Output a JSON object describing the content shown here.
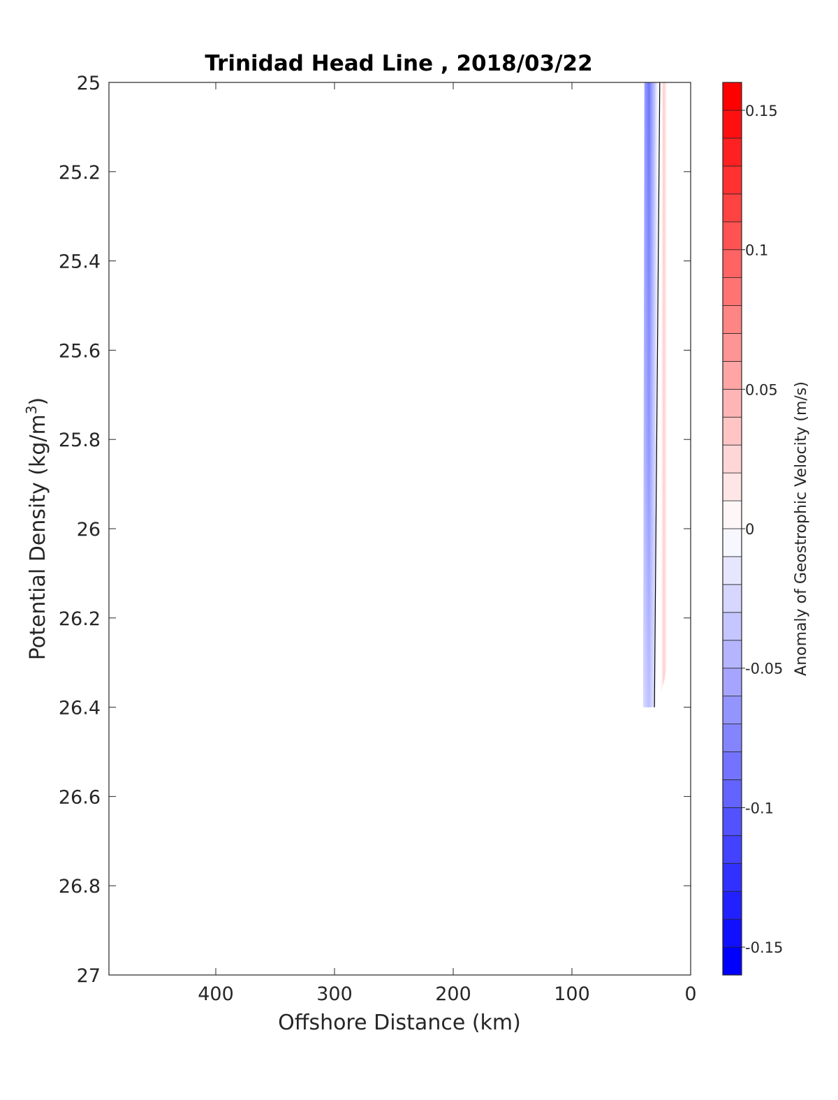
{
  "chart_data": {
    "type": "contour",
    "title": "Trinidad Head Line , 2018/03/22",
    "xlabel": "Offshore Distance (km)",
    "ylabel_main": "Potential Density (kg/m",
    "ylabel_sup": "3",
    "ylabel_close": ")",
    "xlim": [
      490,
      0
    ],
    "ylim": [
      25,
      27
    ],
    "x_reversed": true,
    "y_reversed": true,
    "xticks": [
      400,
      300,
      200,
      100,
      0
    ],
    "xtick_labels": [
      "400",
      "300",
      "200",
      "100",
      "0"
    ],
    "yticks": [
      25,
      25.2,
      25.4,
      25.6,
      25.8,
      26,
      26.2,
      26.4,
      26.6,
      26.8,
      27
    ],
    "ytick_labels": [
      "25",
      "25.2",
      "25.4",
      "25.6",
      "25.8",
      "26",
      "26.2",
      "26.4",
      "26.6",
      "26.8",
      "27"
    ],
    "grid": false,
    "colorbar": {
      "label": "Anomaly of Geostrophic Velocity (m/s)",
      "range": [
        -0.16,
        0.16
      ],
      "step": 0.01,
      "colormap": "blue-white-red",
      "low_color": "#0000ff",
      "mid_color": "#ffffff",
      "high_color": "#ff0000",
      "ticks": [
        0.15,
        0.1,
        0.05,
        0,
        -0.05,
        -0.1,
        -0.15
      ],
      "tick_labels": [
        "0.15",
        "0.1",
        "0.05",
        "0",
        "-0.05",
        "-0.1",
        "-0.15"
      ]
    },
    "negative_anomaly_band": {
      "x_offshore_top": [
        39,
        26
      ],
      "x_offshore_bottom": [
        40,
        30
      ],
      "y_range": [
        25,
        26.4
      ],
      "min_value": -0.1
    },
    "positive_anomaly_band": {
      "x_offshore": [
        24,
        19
      ],
      "y_range": [
        25,
        26.4
      ],
      "max_value": 0.03
    },
    "zero_contour": {
      "x": [
        26,
        30.5
      ],
      "y": [
        25,
        26.4
      ],
      "color": "#000000"
    }
  }
}
